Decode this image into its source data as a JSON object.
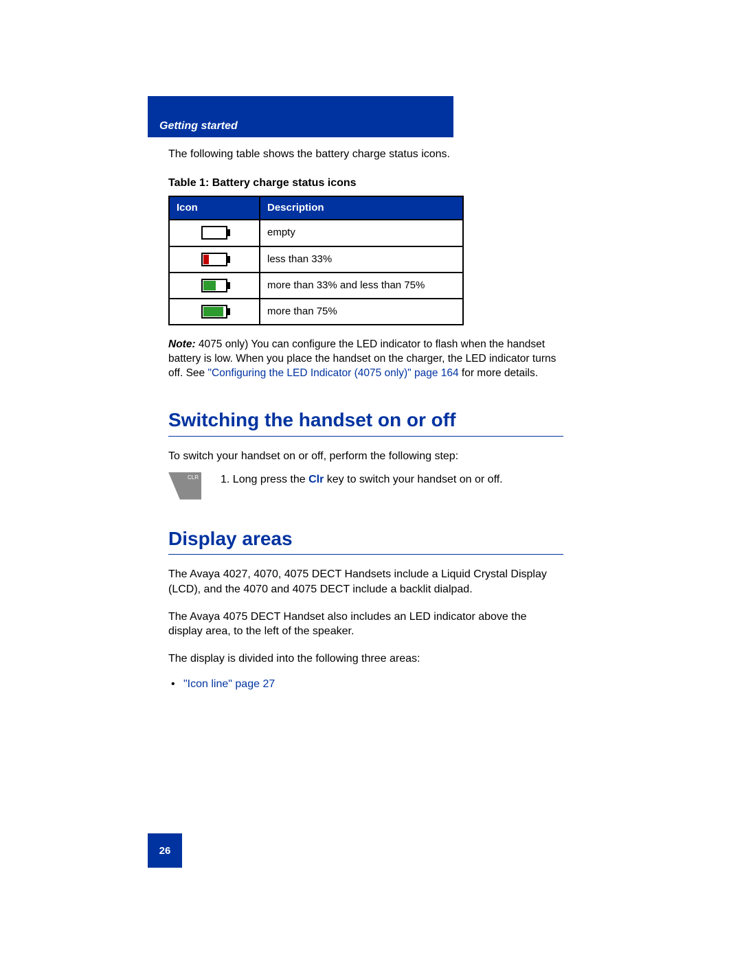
{
  "header": {
    "section_label": "Getting started"
  },
  "intro_text": "The following table shows the battery charge status icons.",
  "table": {
    "caption": "Table 1: Battery charge status icons",
    "col_icon": "Icon",
    "col_desc": "Description",
    "rows": [
      {
        "desc": "empty",
        "fill_pct": 0,
        "fill_color": "#ffffff"
      },
      {
        "desc": "less than 33%",
        "fill_pct": 25,
        "fill_color": "#c00000"
      },
      {
        "desc": "more than 33% and less than 75%",
        "fill_pct": 55,
        "fill_color": "#2e9b2e"
      },
      {
        "desc": "more than 75%",
        "fill_pct": 90,
        "fill_color": "#2e9b2e"
      }
    ]
  },
  "note": {
    "label": "Note:",
    "before_link": " 4075 only) You can configure the LED indicator to flash when the handset battery is low. When you place the handset on the charger, the LED indicator turns off. See ",
    "link_text": "\"Configuring the LED Indicator (4075 only)\" page 164",
    "after_link": " for more details."
  },
  "section1": {
    "heading": "Switching the handset on or off",
    "lead": "To switch your handset on or off, perform the following step:",
    "step_prefix": "1.   Long press the ",
    "key_name": "Clr",
    "step_suffix": " key to switch your handset on or off.",
    "key_icon_label": "CLR"
  },
  "section2": {
    "heading": "Display areas",
    "p1": "The Avaya 4027, 4070, 4075 DECT Handsets include a Liquid Crystal Display (LCD), and the 4070 and 4075 DECT include a backlit dialpad.",
    "p2": "The Avaya 4075 DECT Handset also includes an LED indicator above the display area, to the left of the speaker.",
    "p3": "The display is divided into the following three areas:",
    "bullet1": "\"Icon line\" page 27"
  },
  "page_number": "26",
  "colors": {
    "brand_blue": "#0033a0",
    "text_black": "#000000",
    "key_grey": "#8a8a8a"
  }
}
